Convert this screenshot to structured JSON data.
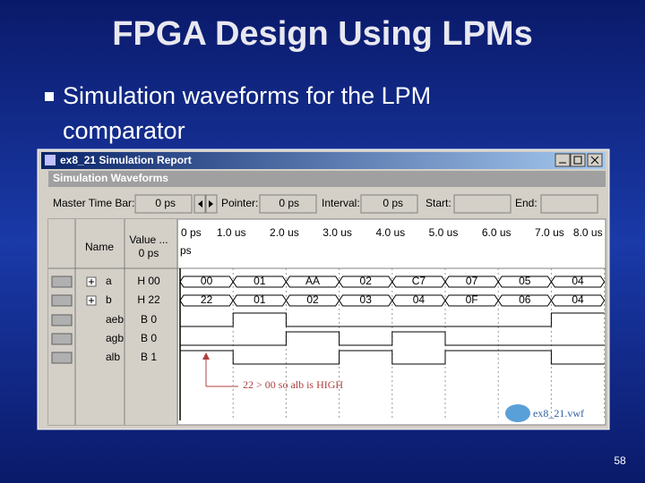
{
  "title": "FPGA Design Using LPMs",
  "bullet": {
    "lines": [
      "Simulation waveforms for the LPM",
      "comparator"
    ]
  },
  "window": {
    "title": "ex8_21 Simulation Report",
    "panel": "Simulation Waveforms",
    "toolbar": {
      "master_label": "Master Time Bar:",
      "master_value": "0 ps",
      "pointer_label": "Pointer:",
      "pointer_value": "0 ps",
      "interval_label": "Interval:",
      "interval_value": "0 ps",
      "start_label": "Start:",
      "end_label": "End:"
    },
    "columns": {
      "name": "Name",
      "value": "Value ...",
      "value_time": "0 ps"
    },
    "time_axis": [
      "0 ps",
      "1.0 us",
      "2.0 us",
      "3.0 us",
      "4.0 us",
      "5.0 us",
      "6.0 us",
      "7.0 us",
      "8.0 us"
    ],
    "time_axis_sub": "ps",
    "signals": [
      {
        "name": "a",
        "value": "H 00",
        "segments": [
          "00",
          "01",
          "AA",
          "02",
          "C7",
          "07",
          "05",
          "04"
        ]
      },
      {
        "name": "b",
        "value": "H 22",
        "segments": [
          "22",
          "01",
          "02",
          "03",
          "04",
          "0F",
          "06",
          "04"
        ]
      },
      {
        "name": "aeb",
        "value": "B 0"
      },
      {
        "name": "agb",
        "value": "B 0"
      },
      {
        "name": "alb",
        "value": "B 1"
      }
    ],
    "annotation": "22 > 00 so alb is HIGH",
    "file": "ex8_21.vwf"
  },
  "page_number": "58"
}
